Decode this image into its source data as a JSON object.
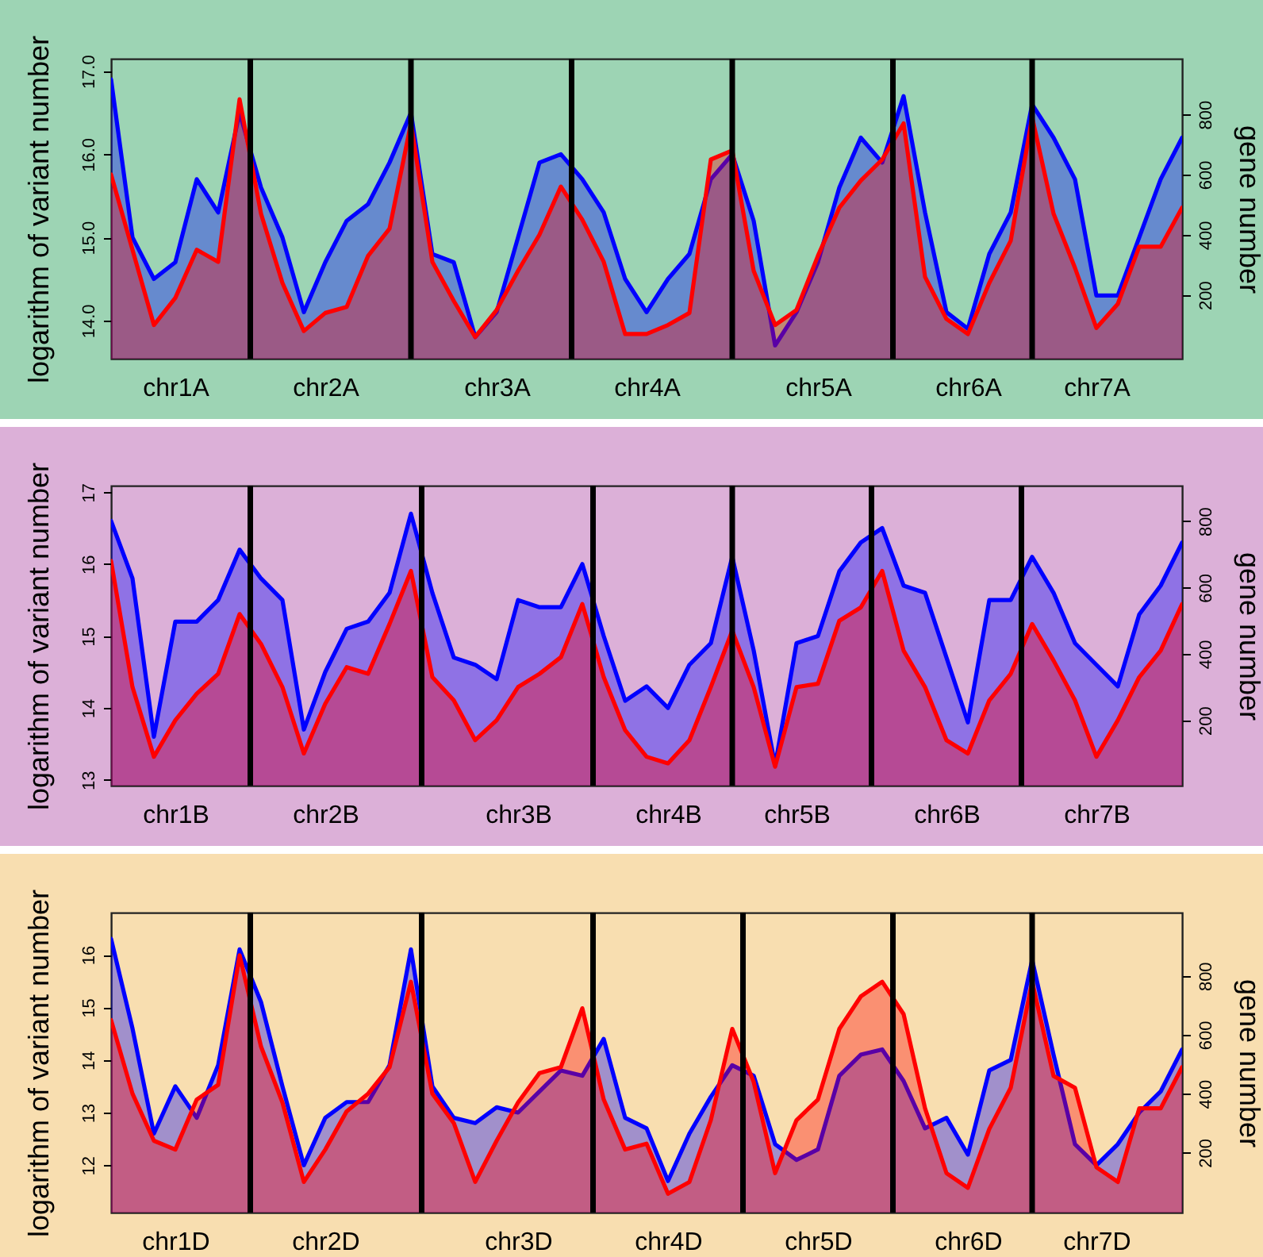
{
  "chart_data": [
    {
      "type": "area",
      "ylabel": "logarithm of variant number",
      "y2label": "gene number",
      "grid": "x",
      "categories": [
        null,
        null,
        null,
        "chr1A",
        null,
        null,
        null,
        null,
        null,
        null,
        "chr2A",
        null,
        null,
        null,
        null,
        null,
        null,
        null,
        "chr3A",
        null,
        null,
        null,
        null,
        null,
        null,
        "chr4A",
        null,
        null,
        null,
        null,
        null,
        null,
        null,
        "chr5A",
        null,
        null,
        null,
        null,
        null,
        null,
        "chr6A",
        null,
        null,
        null,
        null,
        null,
        "chr7A",
        null,
        null,
        null,
        null
      ],
      "ylim": [
        13.54,
        17.15
      ],
      "yticks": [
        {
          "value": 14,
          "label": "14.0"
        },
        {
          "value": 15,
          "label": "15.0"
        },
        {
          "value": 16,
          "label": "16.0"
        },
        {
          "value": 17,
          "label": "17.0"
        }
      ],
      "y2lim": [
        -12,
        985
      ],
      "y2ticks": [
        200,
        400,
        600,
        800
      ],
      "series": [
        {
          "color": "#0000ff",
          "values": [
            16.9,
            15.0,
            14.5,
            14.7,
            15.7,
            15.3,
            16.5,
            15.6,
            15.0,
            14.1,
            14.7,
            15.2,
            15.4,
            15.9,
            16.5,
            14.8,
            14.7,
            13.8,
            14.1,
            15.0,
            15.9,
            16.0,
            15.7,
            15.3,
            14.5,
            14.1,
            14.5,
            14.8,
            15.7,
            16.0,
            15.2,
            13.7,
            14.1,
            14.7,
            15.6,
            16.2,
            15.9,
            16.7,
            15.3,
            14.1,
            13.9,
            14.8,
            15.3,
            16.6,
            16.2,
            15.7,
            14.3,
            14.3,
            15.0,
            15.7,
            16.2
          ]
        },
        {
          "color": "#ff0000",
          "axis": "y2",
          "values": [
            600,
            350,
            100,
            190,
            350,
            310,
            850,
            470,
            240,
            80,
            140,
            160,
            330,
            420,
            770,
            310,
            180,
            60,
            150,
            280,
            400,
            560,
            450,
            310,
            70,
            70,
            100,
            140,
            650,
            680,
            280,
            100,
            150,
            330,
            490,
            580,
            650,
            770,
            260,
            120,
            70,
            240,
            380,
            790,
            470,
            290,
            90,
            170,
            360,
            360,
            490
          ]
        }
      ]
    },
    {
      "type": "area",
      "ylabel": "logarithm of variant number",
      "y2label": "gene number",
      "grid": "x",
      "categories": [
        null,
        null,
        null,
        "chr1B",
        null,
        null,
        null,
        null,
        null,
        null,
        "chr2B",
        null,
        null,
        null,
        null,
        null,
        null,
        null,
        null,
        "chr3B",
        null,
        null,
        null,
        null,
        null,
        null,
        "chr4B",
        null,
        null,
        null,
        null,
        null,
        "chr5B",
        null,
        null,
        null,
        null,
        null,
        null,
        "chr6B",
        null,
        null,
        null,
        null,
        null,
        null,
        "chr7B",
        null,
        null,
        null,
        null
      ],
      "ylim": [
        12.92,
        17.09
      ],
      "yticks": [
        13,
        14,
        15,
        16,
        17
      ],
      "y2lim": [
        3,
        907
      ],
      "y2ticks": [
        200,
        400,
        600,
        800
      ],
      "series": [
        {
          "color": "#0000ff",
          "values": [
            16.6,
            15.8,
            13.6,
            15.2,
            15.2,
            15.5,
            16.2,
            15.8,
            15.5,
            13.7,
            14.5,
            15.1,
            15.2,
            15.6,
            16.7,
            15.6,
            14.7,
            14.6,
            14.4,
            15.5,
            15.4,
            15.4,
            16.0,
            15.0,
            14.1,
            14.3,
            14.0,
            14.6,
            14.9,
            16.1,
            14.8,
            13.2,
            14.9,
            15.0,
            15.9,
            16.3,
            16.5,
            15.7,
            15.6,
            14.7,
            13.8,
            15.5,
            15.5,
            16.1,
            15.6,
            14.9,
            14.6,
            14.3,
            15.3,
            15.7,
            16.3
          ]
        },
        {
          "color": "#ff0000",
          "axis": "y2",
          "values": [
            680,
            300,
            90,
            200,
            280,
            340,
            520,
            430,
            300,
            100,
            250,
            360,
            340,
            490,
            650,
            330,
            260,
            140,
            200,
            300,
            340,
            390,
            550,
            330,
            170,
            90,
            70,
            140,
            300,
            470,
            300,
            60,
            300,
            310,
            500,
            540,
            650,
            410,
            300,
            140,
            100,
            260,
            340,
            490,
            380,
            260,
            90,
            200,
            330,
            410,
            550
          ]
        }
      ]
    },
    {
      "type": "area",
      "ylabel": "logarithm of variant number",
      "y2label": "gene number",
      "grid": "x",
      "categories": [
        null,
        null,
        null,
        "chr1D",
        null,
        null,
        null,
        null,
        null,
        null,
        "chr2D",
        null,
        null,
        null,
        null,
        null,
        null,
        null,
        null,
        "chr3D",
        null,
        null,
        null,
        null,
        null,
        null,
        "chr4D",
        null,
        null,
        null,
        null,
        null,
        null,
        "chr5D",
        null,
        null,
        null,
        null,
        null,
        null,
        "chr6D",
        null,
        null,
        null,
        null,
        null,
        "chr7D",
        null,
        null,
        null,
        null
      ],
      "ylim": [
        11.1,
        16.8
      ],
      "yticks": [
        12,
        13,
        14,
        15,
        16
      ],
      "y2lim": [
        -4,
        1015
      ],
      "y2ticks": [
        200,
        400,
        600,
        800
      ],
      "series": [
        {
          "color": "#0000ff",
          "values": [
            16.3,
            14.6,
            12.6,
            13.5,
            12.9,
            13.9,
            16.1,
            15.1,
            13.5,
            12.0,
            12.9,
            13.2,
            13.2,
            13.9,
            16.1,
            13.5,
            12.9,
            12.8,
            13.1,
            13.0,
            13.4,
            13.8,
            13.7,
            14.4,
            12.9,
            12.7,
            11.7,
            12.6,
            13.3,
            13.9,
            13.7,
            12.4,
            12.1,
            12.3,
            13.7,
            14.1,
            14.2,
            13.6,
            12.7,
            12.9,
            12.2,
            13.8,
            14.0,
            15.9,
            14.1,
            12.4,
            12.0,
            12.4,
            13.0,
            13.4,
            14.2
          ]
        },
        {
          "color": "#ff0000",
          "axis": "y2",
          "values": [
            650,
            400,
            240,
            210,
            380,
            430,
            870,
            560,
            370,
            100,
            210,
            340,
            400,
            490,
            780,
            400,
            300,
            100,
            240,
            370,
            470,
            490,
            690,
            380,
            210,
            230,
            60,
            100,
            310,
            620,
            440,
            130,
            310,
            380,
            620,
            730,
            780,
            670,
            350,
            130,
            80,
            280,
            420,
            780,
            460,
            420,
            150,
            100,
            350,
            350,
            490
          ]
        }
      ]
    }
  ]
}
